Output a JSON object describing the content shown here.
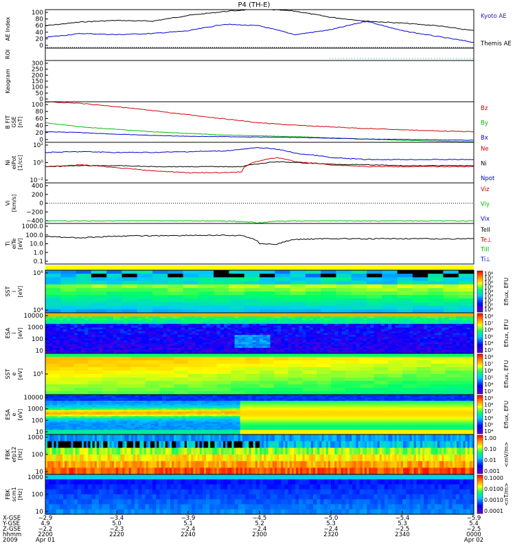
{
  "title": "P4 (TH-E)",
  "colors": {
    "black": "#000000",
    "red": "#cc0000",
    "green": "#00bb00",
    "blue": "#0000cc",
    "cyan": "#00bbdd",
    "kyoto": "#2222aa",
    "cb_high": "#ff0000",
    "cb_low": "#6600cc"
  },
  "panels": [
    {
      "id": "ae",
      "ylabel": [
        "AE Index"
      ],
      "yticks": [
        "100",
        "80",
        "60",
        "40",
        "20",
        "0"
      ],
      "legend": [
        {
          "text": "Kyoto AE",
          "color": "#2222aa"
        },
        {
          "text": "Themis AE",
          "color": "#000000"
        }
      ]
    },
    {
      "id": "roi",
      "ylabel": [
        "ROI"
      ],
      "yticks": [],
      "legend": []
    },
    {
      "id": "keogram",
      "ylabel": [
        "Keogram"
      ],
      "yticks": [
        "300",
        "250",
        "200",
        "150",
        "100",
        "50",
        "0"
      ],
      "legend": []
    },
    {
      "id": "bfield",
      "ylabel": [
        "B FIT",
        "GSE",
        "[nT]"
      ],
      "yticks": [
        "100",
        "80",
        "60",
        "40",
        "20",
        "0"
      ],
      "legend": [
        {
          "text": "Bz",
          "color": "#cc0000"
        },
        {
          "text": "By",
          "color": "#00bb00"
        },
        {
          "text": "Bx",
          "color": "#0000cc"
        }
      ]
    },
    {
      "id": "density",
      "ylabel": [
        "Ni",
        "eiPot",
        "[1/cc]"
      ],
      "yticks": [
        "10²",
        "10⁰",
        "10⁻²"
      ],
      "legend": [
        {
          "text": "Ne",
          "color": "#cc0000"
        },
        {
          "text": "Ni",
          "color": "#000000"
        },
        {
          "text": "Npot",
          "color": "#0000cc"
        }
      ]
    },
    {
      "id": "velocity",
      "ylabel": [
        "Vi",
        "[km/s]"
      ],
      "yticks": [
        "400",
        "200",
        "0",
        "−200",
        "−400"
      ],
      "legend": [
        {
          "text": "Viz",
          "color": "#cc0000"
        },
        {
          "text": "Viy",
          "color": "#00bb00"
        },
        {
          "text": "Vix",
          "color": "#0000cc"
        }
      ]
    },
    {
      "id": "temperature",
      "ylabel": [
        "Ti",
        "eiTe",
        "[eV]"
      ],
      "yticks": [
        "1000.0",
        "100.0",
        "10.0",
        "1.0",
        "0.1"
      ],
      "legend": [
        {
          "text": "TeII",
          "color": "#000000"
        },
        {
          "text": "Te⊥",
          "color": "#cc0000"
        },
        {
          "text": "TiII",
          "color": "#00bb00"
        },
        {
          "text": "Ti⊥",
          "color": "#0000cc"
        }
      ]
    },
    {
      "id": "sst_i",
      "ylabel": [
        "SST",
        "i",
        "[eV]"
      ],
      "yticks": [
        "10⁶",
        "10⁴"
      ],
      "cbar_label": "Eflux, EFU",
      "cbar_ticks": [
        "10⁸",
        "10⁷",
        "10⁶",
        "10⁵",
        "10⁴",
        "10³",
        "10²",
        "10¹",
        "10⁰"
      ]
    },
    {
      "id": "esa_i",
      "ylabel": [
        "ESA",
        "i",
        "[eV]"
      ],
      "yticks": [
        "10000",
        "1000",
        "100",
        "10"
      ],
      "cbar_label": "Eflux, EFU",
      "cbar_ticks": [
        "10⁸",
        "10⁷",
        "10⁶",
        "10⁵",
        "10⁴",
        "10³"
      ]
    },
    {
      "id": "sst_e",
      "ylabel": [
        "SST",
        "e",
        "[eV]"
      ],
      "yticks": [
        "10⁵"
      ],
      "cbar_label": "Eflux, EFU",
      "cbar_ticks": [
        "10⁸",
        "10⁷",
        "10⁶",
        "10⁵",
        "10⁴",
        "10³"
      ]
    },
    {
      "id": "esa_e",
      "ylabel": [
        "ESA",
        "e",
        "[eV]"
      ],
      "yticks": [
        "10000",
        "1000",
        "100",
        "10"
      ],
      "cbar_label": "Eflux, EFU",
      "cbar_ticks": [
        "10⁹",
        "10⁸",
        "10⁷",
        "10⁶",
        "10⁵",
        "10⁴"
      ]
    },
    {
      "id": "fbk_e",
      "ylabel": [
        "FBK",
        "efp12",
        "[Hz]"
      ],
      "yticks": [
        "1000",
        "100",
        "10"
      ],
      "cbar_label": "<mV/m>",
      "cbar_ticks": [
        "1.00",
        "0.10",
        "0.01",
        "0.001"
      ]
    },
    {
      "id": "fbk_b",
      "ylabel": [
        "FBK",
        "scm1",
        "[Hz]"
      ],
      "yticks": [
        "1000",
        "100",
        "10"
      ],
      "cbar_label": "<nT/m>",
      "cbar_ticks": [
        "0.1000",
        "0.0100",
        "0.0010",
        "0.0001"
      ]
    }
  ],
  "xaxis": {
    "row_labels": [
      "X-GSE",
      "Y-GSE",
      "Z-GSE",
      "hhmm",
      "2009"
    ],
    "columns": [
      {
        "vals": [
          "−2.9",
          "4.9",
          "−2.2",
          "2200",
          "Apr 01"
        ]
      },
      {
        "vals": [
          "−3.4",
          "5.0",
          "−2.3",
          "2220",
          ""
        ]
      },
      {
        "vals": [
          "−3.9",
          "5.1",
          "−2.4",
          "2240",
          ""
        ]
      },
      {
        "vals": [
          "−4.5",
          "5.2",
          "−2.4",
          "2300",
          ""
        ]
      },
      {
        "vals": [
          "−5.0",
          "5.3",
          "−2.4",
          "2320",
          ""
        ]
      },
      {
        "vals": [
          "−5.4",
          "5.3",
          "−2.5",
          "2340",
          ""
        ]
      },
      {
        "vals": [
          "−5.9",
          "5.4",
          "−2.5",
          "0000",
          "Apr 02"
        ]
      }
    ]
  },
  "chart_data": [
    {
      "type": "line",
      "panel": "ae",
      "ylabel": "AE Index",
      "ylim": [
        0,
        100
      ],
      "x_minutes": [
        0,
        10,
        20,
        30,
        40,
        50,
        60,
        70,
        80,
        90,
        100,
        110,
        120
      ],
      "series": [
        {
          "name": "Themis AE",
          "values": [
            58,
            68,
            72,
            70,
            85,
            95,
            102,
            96,
            80,
            70,
            65,
            58,
            45
          ]
        },
        {
          "name": "Kyoto AE",
          "values": [
            28,
            38,
            35,
            38,
            45,
            62,
            58,
            35,
            48,
            70,
            45,
            30,
            15
          ]
        }
      ]
    },
    {
      "type": "line",
      "panel": "bfield",
      "ylabel": "B FIT GSE [nT]",
      "ylim": [
        0,
        100
      ],
      "x_minutes": [
        0,
        10,
        20,
        30,
        40,
        50,
        60,
        70,
        80,
        90,
        100,
        110,
        120
      ],
      "series": [
        {
          "name": "Bz",
          "values": [
            100,
            96,
            88,
            78,
            68,
            58,
            48,
            42,
            38,
            34,
            31,
            28,
            26
          ]
        },
        {
          "name": "By",
          "values": [
            48,
            38,
            32,
            26,
            22,
            18,
            16,
            14,
            11,
            8,
            5,
            3,
            1
          ]
        },
        {
          "name": "Bx",
          "values": [
            26,
            24,
            20,
            17,
            15,
            14,
            13,
            12,
            10,
            8,
            7,
            6,
            5
          ]
        }
      ]
    },
    {
      "type": "line",
      "panel": "density",
      "ylabel": "Ni eiPot [1/cc]",
      "ylog": true,
      "ylim": [
        0.01,
        100
      ],
      "x_minutes": [
        0,
        10,
        20,
        30,
        40,
        50,
        55,
        60,
        65,
        70,
        80,
        90,
        100,
        110,
        120
      ],
      "series": [
        {
          "name": "Ne",
          "values": [
            0.4,
            0.6,
            0.3,
            0.15,
            0.1,
            0.1,
            0.12,
            1.5,
            3,
            1.2,
            0.6,
            0.4,
            0.4,
            0.4,
            0.4
          ]
        },
        {
          "name": "Ni",
          "values": [
            0.4,
            0.5,
            0.5,
            0.4,
            0.4,
            0.4,
            0.4,
            0.8,
            1.2,
            1.0,
            0.7,
            0.6,
            0.5,
            0.5,
            0.5
          ]
        },
        {
          "name": "Npot",
          "values": [
            10,
            12,
            10,
            10,
            12,
            14,
            20,
            30,
            20,
            8,
            3,
            2,
            2,
            2,
            2
          ]
        }
      ]
    },
    {
      "type": "line",
      "panel": "temperature",
      "ylabel": "Ti eiTe [eV]",
      "ylog": true,
      "ylim": [
        0.1,
        2000
      ],
      "x_minutes": [
        0,
        10,
        20,
        30,
        40,
        50,
        55,
        60,
        65,
        70,
        80,
        90,
        100,
        110,
        120
      ],
      "series": [
        {
          "name": "TeII",
          "values": [
            80,
            60,
            90,
            100,
            110,
            110,
            100,
            15,
            12,
            40,
            50,
            45,
            50,
            45,
            50
          ]
        },
        {
          "name": "TiII",
          "values": [
            2000,
            1900,
            2000,
            2100,
            2000,
            1900,
            1600,
            1200,
            1800,
            1900,
            2000,
            1900,
            2000,
            1900,
            2000
          ]
        }
      ]
    }
  ]
}
